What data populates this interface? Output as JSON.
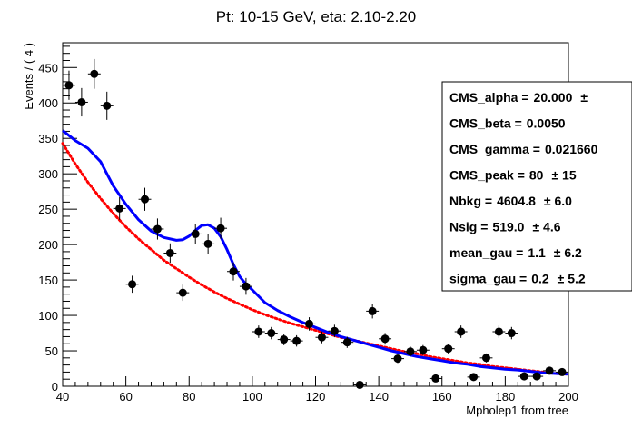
{
  "chart_data": {
    "type": "scatter",
    "title": "Pt: 10-15 GeV, eta: 2.10-2.20",
    "xlabel": "Mpholep1 from tree",
    "ylabel": "Events / ( 4 )",
    "xlim": [
      40,
      200
    ],
    "ylim": [
      0,
      485
    ],
    "x_ticks": [
      40,
      60,
      80,
      100,
      120,
      140,
      160,
      180,
      200
    ],
    "y_ticks": [
      0,
      50,
      100,
      150,
      200,
      250,
      300,
      350,
      400,
      450
    ],
    "x_tick_labels": [
      "40",
      "60",
      "80",
      "100",
      "120",
      "140",
      "160",
      "180",
      "200"
    ],
    "y_tick_labels": [
      "0",
      "50",
      "100",
      "150",
      "200",
      "250",
      "300",
      "350",
      "400",
      "450"
    ],
    "bin_width": 4,
    "series": [
      {
        "kind": "data_points",
        "x": [
          42,
          46,
          50,
          54,
          58,
          62,
          66,
          70,
          74,
          78,
          82,
          86,
          90,
          94,
          98,
          102,
          106,
          110,
          114,
          118,
          122,
          126,
          130,
          134,
          138,
          142,
          146,
          150,
          154,
          158,
          162,
          166,
          170,
          174,
          178,
          182,
          186,
          190,
          194,
          198
        ],
        "y": [
          425,
          401,
          441,
          396,
          251,
          144,
          264,
          222,
          188,
          132,
          215,
          201,
          223,
          162,
          141,
          77,
          75,
          66,
          64,
          88,
          69,
          78,
          62,
          2,
          106,
          67,
          39,
          49,
          51,
          11,
          53,
          77,
          13,
          40,
          77,
          75,
          14,
          14,
          22,
          20
        ]
      },
      {
        "kind": "total_fit_curve",
        "color": "#0000ff",
        "x": [
          40,
          44,
          48,
          52,
          56,
          60,
          64,
          68,
          72,
          76,
          78,
          80,
          82,
          84,
          86,
          88,
          90,
          92,
          94,
          96,
          98,
          100,
          104,
          108,
          112,
          116,
          120,
          124,
          128,
          132,
          136,
          140,
          144,
          148,
          152,
          156,
          160,
          164,
          168,
          172,
          176,
          180,
          184,
          188,
          192,
          196,
          200
        ],
        "y": [
          361,
          347,
          336,
          317,
          283,
          257,
          235,
          219,
          210,
          206,
          207,
          212,
          220,
          227,
          228,
          223,
          211,
          193,
          172,
          155,
          144,
          136,
          118,
          107,
          98,
          90,
          83,
          76,
          70,
          65,
          60,
          55,
          50,
          46,
          42,
          39,
          36,
          33,
          31,
          28,
          26,
          24,
          23,
          21,
          19,
          18,
          17
        ]
      },
      {
        "kind": "background_fit_curve",
        "color": "#ff0000",
        "x": [
          40,
          44,
          48,
          52,
          56,
          60,
          64,
          68,
          72,
          76,
          80,
          84,
          88,
          92,
          96,
          100,
          104,
          108,
          112,
          116,
          120,
          124,
          128,
          132,
          136,
          140,
          144,
          148,
          152,
          156,
          160,
          164,
          168,
          172,
          176,
          180,
          184,
          188,
          192,
          196,
          200
        ],
        "y": [
          343,
          314,
          288,
          265,
          244,
          225,
          208,
          193,
          178,
          166,
          154,
          143,
          133,
          124,
          116,
          108,
          101,
          95,
          89,
          84,
          79,
          74,
          69,
          65,
          61,
          57,
          53,
          49,
          46,
          42,
          39,
          36,
          33,
          31,
          28,
          26,
          24,
          22,
          20,
          18,
          17
        ]
      }
    ],
    "stats_box": {
      "lines": [
        {
          "name": "CMS_alpha =",
          "value": "20.000",
          "err": "±"
        },
        {
          "name": "CMS_beta =",
          "value": "0.0050",
          "err": ""
        },
        {
          "name": "CMS_gamma =",
          "value": "0.021660",
          "err": ""
        },
        {
          "name": "CMS_peak =",
          "value": "80",
          "err": "± 15"
        },
        {
          "name": "Nbkg =",
          "value": "4604.8",
          "err": "± 6.0"
        },
        {
          "name": "Nsig =",
          "value": "519.0",
          "err": "± 4.6"
        },
        {
          "name": "mean_gau =",
          "value": "1.1",
          "err": "± 6.2"
        },
        {
          "name": "sigma_gau =",
          "value": "0.2",
          "err": "± 5.2"
        }
      ]
    }
  }
}
